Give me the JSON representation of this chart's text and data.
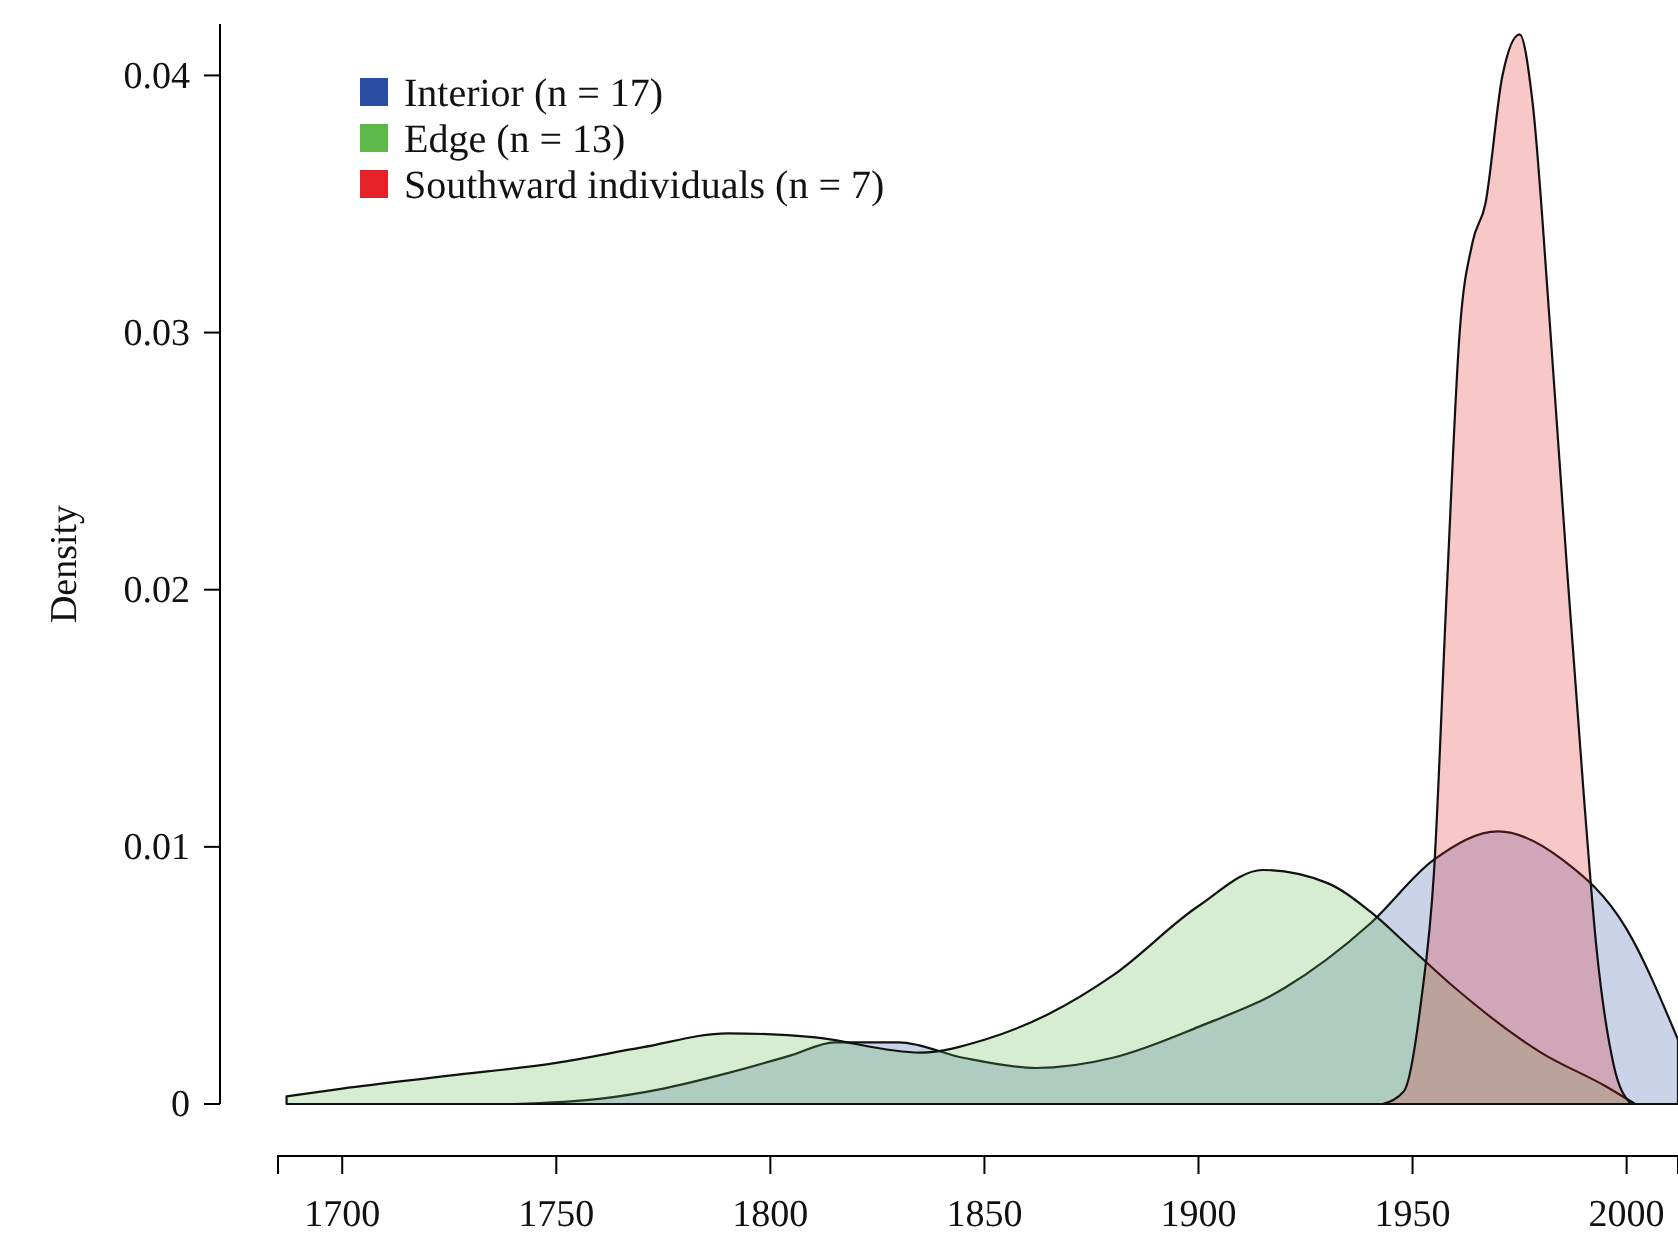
{
  "chart_data": {
    "type": "area",
    "ylabel": "Density",
    "xlim": [
      1685,
      2012
    ],
    "ylim": [
      0,
      0.042
    ],
    "xticks": [
      1700,
      1750,
      1800,
      1850,
      1900,
      1950,
      2000
    ],
    "yticks": [
      0,
      0.01,
      0.02,
      0.03,
      0.04
    ],
    "legend": "top left",
    "grid": false,
    "series": [
      {
        "name": "Interior (n = 17)",
        "color": "#2b4ea2",
        "x": [
          1740,
          1760,
          1775,
          1790,
          1805,
          1815,
          1830,
          1845,
          1862,
          1880,
          1900,
          1920,
          1940,
          1955,
          1970,
          1985,
          2000,
          2012
        ],
        "values": [
          0,
          0.0002,
          0.0006,
          0.0012,
          0.0019,
          0.0024,
          0.0024,
          0.0018,
          0.0014,
          0.0018,
          0.003,
          0.0045,
          0.007,
          0.0095,
          0.0106,
          0.0095,
          0.0068,
          0.0025
        ]
      },
      {
        "name": "Edge (n = 13)",
        "color": "#5cb848",
        "x": [
          1687,
          1700,
          1725,
          1750,
          1770,
          1790,
          1810,
          1835,
          1850,
          1865,
          1880,
          1900,
          1915,
          1930,
          1940,
          1950,
          1960,
          1980,
          1995,
          2002
        ],
        "values": [
          0.0003,
          0.0006,
          0.0011,
          0.0016,
          0.0022,
          0.00275,
          0.0026,
          0.002,
          0.0025,
          0.0035,
          0.005,
          0.0077,
          0.0091,
          0.0086,
          0.0075,
          0.006,
          0.0045,
          0.002,
          0.0007,
          0
        ]
      },
      {
        "name": "Southward individuals (n = 7)",
        "color": "#e42228",
        "x": [
          1943,
          1948,
          1952,
          1955,
          1958,
          1961,
          1964,
          1967,
          1971,
          1975,
          1978,
          1982,
          1986,
          1990,
          1993,
          1997,
          2001
        ],
        "values": [
          0,
          0.0005,
          0.004,
          0.009,
          0.02,
          0.03,
          0.0335,
          0.035,
          0.04,
          0.0416,
          0.039,
          0.0305,
          0.021,
          0.012,
          0.006,
          0.0015,
          0
        ]
      }
    ]
  }
}
